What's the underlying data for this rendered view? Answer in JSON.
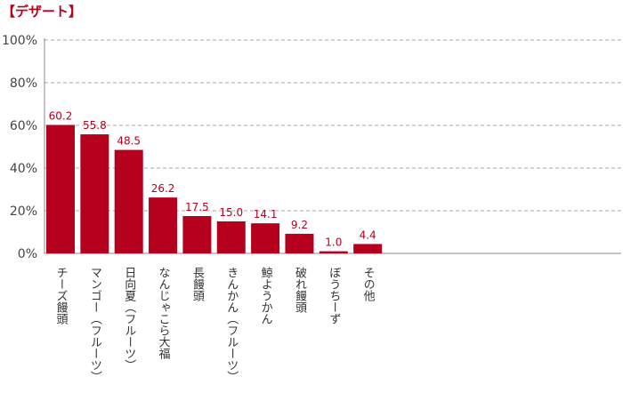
{
  "title": "【デザート】",
  "chart_data": {
    "type": "bar",
    "title": "【デザート】",
    "xlabel": "",
    "ylabel": "",
    "ylim": [
      0,
      100
    ],
    "yticks": [
      "0%",
      "20%",
      "40%",
      "60%",
      "80%",
      "100%"
    ],
    "categories": [
      "チーズ饅頭",
      "マンゴー（フルーツ）",
      "日向夏（フルーツ）",
      "なんじゃこら大福",
      "長饅頭",
      "きんかん（フルーツ）",
      "鯨ようかん",
      "破れ饅頭",
      "ぼうちーず",
      "その他"
    ],
    "values": [
      60.2,
      55.8,
      48.5,
      26.2,
      17.5,
      15.0,
      14.1,
      9.2,
      1.0,
      4.4
    ],
    "value_labels": [
      "60.2",
      "55.8",
      "48.5",
      "26.2",
      "17.5",
      "15.0",
      "14.1",
      "9.2",
      "1.0",
      "4.4"
    ],
    "grid": true,
    "legend": "none",
    "colors": {
      "bar": "#b5001e",
      "label": "#b5001e",
      "grid": "#aaaaaa",
      "axis": "#888888",
      "tick": "#444444"
    }
  }
}
